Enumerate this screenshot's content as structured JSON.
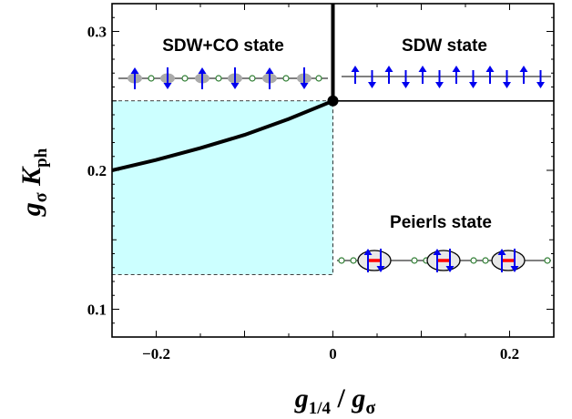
{
  "chart_data": {
    "type": "line",
    "xlabel": "g1/4 / gσ",
    "xlabel_parts": {
      "g1": "g",
      "s1": "1/4",
      "slash": " / ",
      "g2": "g",
      "s2": "σ"
    },
    "ylabel_parts": {
      "g": "g",
      "s1": "σ",
      "k": " K",
      "s2": "ph"
    },
    "xlim": [
      -0.25,
      0.25
    ],
    "ylim": [
      0.08,
      0.32
    ],
    "xticks": [
      {
        "v": -0.2,
        "label": "−0.2"
      },
      {
        "v": 0,
        "label": "0"
      },
      {
        "v": 0.2,
        "label": "0.2"
      }
    ],
    "yticks": [
      {
        "v": 0.1,
        "label": "0.1"
      },
      {
        "v": 0.2,
        "label": "0.2"
      },
      {
        "v": 0.3,
        "label": "0.3"
      }
    ],
    "phase_boundaries": [
      {
        "name": "sdw_co_vs_peierls",
        "x": [
          -0.25,
          -0.2,
          -0.15,
          -0.1,
          -0.05,
          0
        ],
        "y": [
          0.2,
          0.2075,
          0.216,
          0.2255,
          0.237,
          0.25
        ]
      },
      {
        "name": "sdw_co_vs_sdw",
        "x": [
          0,
          0
        ],
        "y": [
          0.25,
          0.32
        ]
      },
      {
        "name": "sdw_vs_peierls",
        "x": [
          0,
          0.25
        ],
        "y": [
          0.25,
          0.25
        ]
      }
    ],
    "critical_point": {
      "x": 0,
      "y": 0.25
    },
    "shaded_region": {
      "x": [
        -0.25,
        0
      ],
      "y": [
        0.125,
        0.25
      ],
      "color": "#ccffff"
    },
    "regions": [
      {
        "label": "SDW+CO state"
      },
      {
        "label": "SDW state"
      },
      {
        "label": "Peierls state"
      }
    ],
    "colors": {
      "spin": "#0000ee",
      "site": "#ffffff",
      "site_stroke": "#2e7d32",
      "shadow": "#aaaaaa",
      "bond": "#ff0000"
    }
  }
}
